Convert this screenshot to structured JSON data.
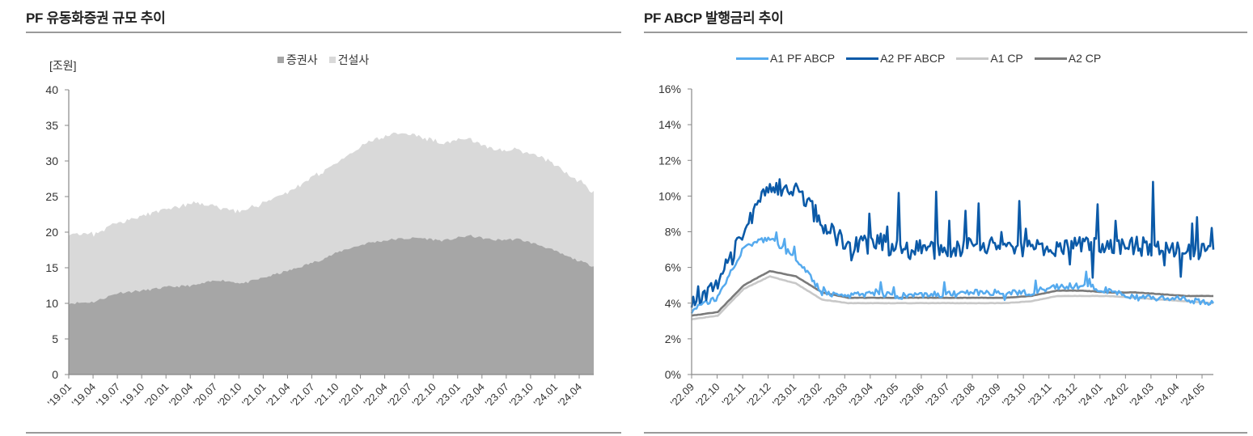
{
  "left_chart": {
    "title": "PF 유동화증권 규모 추이",
    "unit": "[조원]",
    "legend": [
      {
        "label": "증권사",
        "color": "#a6a6a6"
      },
      {
        "label": "건설사",
        "color": "#d9d9d9"
      }
    ]
  },
  "right_chart": {
    "title": "PF ABCP 발행금리 추이",
    "legend": [
      {
        "label": "A1 PF ABCP",
        "color": "#55aaee"
      },
      {
        "label": "A2 PF ABCP",
        "color": "#0b5aa8"
      },
      {
        "label": "A1 CP",
        "color": "#c8c8c8"
      },
      {
        "label": "A2 CP",
        "color": "#7a7a7a"
      }
    ]
  },
  "chart_data": [
    {
      "type": "area",
      "stacked": true,
      "title": "PF 유동화증권 규모 추이",
      "xlabel": "",
      "ylabel": "[조원]",
      "ylim": [
        0,
        40
      ],
      "yticks": [
        0,
        5,
        10,
        15,
        20,
        25,
        30,
        35,
        40
      ],
      "grid": false,
      "legend_position": "top",
      "categories": [
        "'19.01",
        "'19.04",
        "'19.07",
        "'19.10",
        "'20.01",
        "'20.04",
        "'20.07",
        "'20.10",
        "'21.01",
        "'21.04",
        "'21.07",
        "'21.10",
        "'22.01",
        "'22.04",
        "'22.07",
        "'22.10",
        "'23.01",
        "'23.04",
        "'23.07",
        "'23.10",
        "'24.01",
        "'24.04"
      ],
      "series": [
        {
          "name": "증권사",
          "color": "#a6a6a6",
          "values": [
            10.0,
            10.2,
            11.5,
            11.8,
            12.3,
            12.5,
            13.3,
            12.8,
            13.8,
            14.8,
            16.0,
            17.5,
            18.5,
            19.0,
            19.2,
            18.8,
            19.5,
            18.9,
            19.0,
            18.0,
            16.5,
            15.2
          ]
        },
        {
          "name": "건설사",
          "color": "#d9d9d9",
          "values": [
            10.0,
            9.5,
            10.0,
            10.5,
            11.0,
            11.5,
            10.3,
            10.0,
            10.7,
            11.2,
            12.3,
            12.8,
            14.2,
            14.8,
            14.3,
            13.7,
            13.5,
            12.6,
            12.6,
            12.5,
            11.5,
            10.6
          ]
        }
      ]
    },
    {
      "type": "line",
      "title": "PF ABCP 발행금리 추이",
      "xlabel": "",
      "ylabel": "",
      "ylim": [
        0,
        16
      ],
      "yticks": [
        "0%",
        "2%",
        "4%",
        "6%",
        "8%",
        "10%",
        "12%",
        "14%",
        "16%"
      ],
      "grid": false,
      "legend_position": "top",
      "categories": [
        "'22.09",
        "'22.10",
        "'22.11",
        "'22.12",
        "'23.01",
        "'23.02",
        "'23.03",
        "'23.04",
        "'23.05",
        "'23.06",
        "'23.07",
        "'23.08",
        "'23.09",
        "'23.10",
        "'23.11",
        "'23.12",
        "'24.01",
        "'24.02",
        "'24.03",
        "'24.04",
        "'24.05"
      ],
      "series": [
        {
          "name": "A1 PF ABCP",
          "color": "#55aaee",
          "values": [
            3.6,
            4.3,
            7.2,
            7.6,
            6.5,
            4.6,
            4.4,
            4.5,
            4.4,
            4.5,
            4.5,
            4.6,
            4.6,
            4.6,
            4.9,
            5.0,
            4.7,
            4.3,
            4.3,
            4.2,
            4.0
          ]
        },
        {
          "name": "A2 PF ABCP",
          "color": "#0b5aa8",
          "values": [
            4.3,
            5.0,
            8.0,
            10.5,
            10.5,
            8.5,
            7.2,
            7.5,
            7.0,
            7.0,
            7.0,
            7.2,
            7.5,
            7.0,
            7.0,
            7.2,
            7.0,
            7.2,
            7.0,
            6.8,
            7.0
          ]
        },
        {
          "name": "A1 CP",
          "color": "#c8c8c8",
          "values": [
            3.1,
            3.3,
            4.8,
            5.5,
            5.1,
            4.2,
            4.0,
            4.0,
            4.0,
            4.0,
            4.0,
            4.0,
            4.0,
            4.1,
            4.4,
            4.4,
            4.4,
            4.3,
            4.2,
            4.1,
            4.0
          ]
        },
        {
          "name": "A2 CP",
          "color": "#7a7a7a",
          "values": [
            3.3,
            3.5,
            5.0,
            5.8,
            5.5,
            4.6,
            4.3,
            4.3,
            4.3,
            4.3,
            4.3,
            4.3,
            4.3,
            4.4,
            4.7,
            4.7,
            4.6,
            4.6,
            4.5,
            4.4,
            4.4
          ]
        }
      ]
    }
  ]
}
